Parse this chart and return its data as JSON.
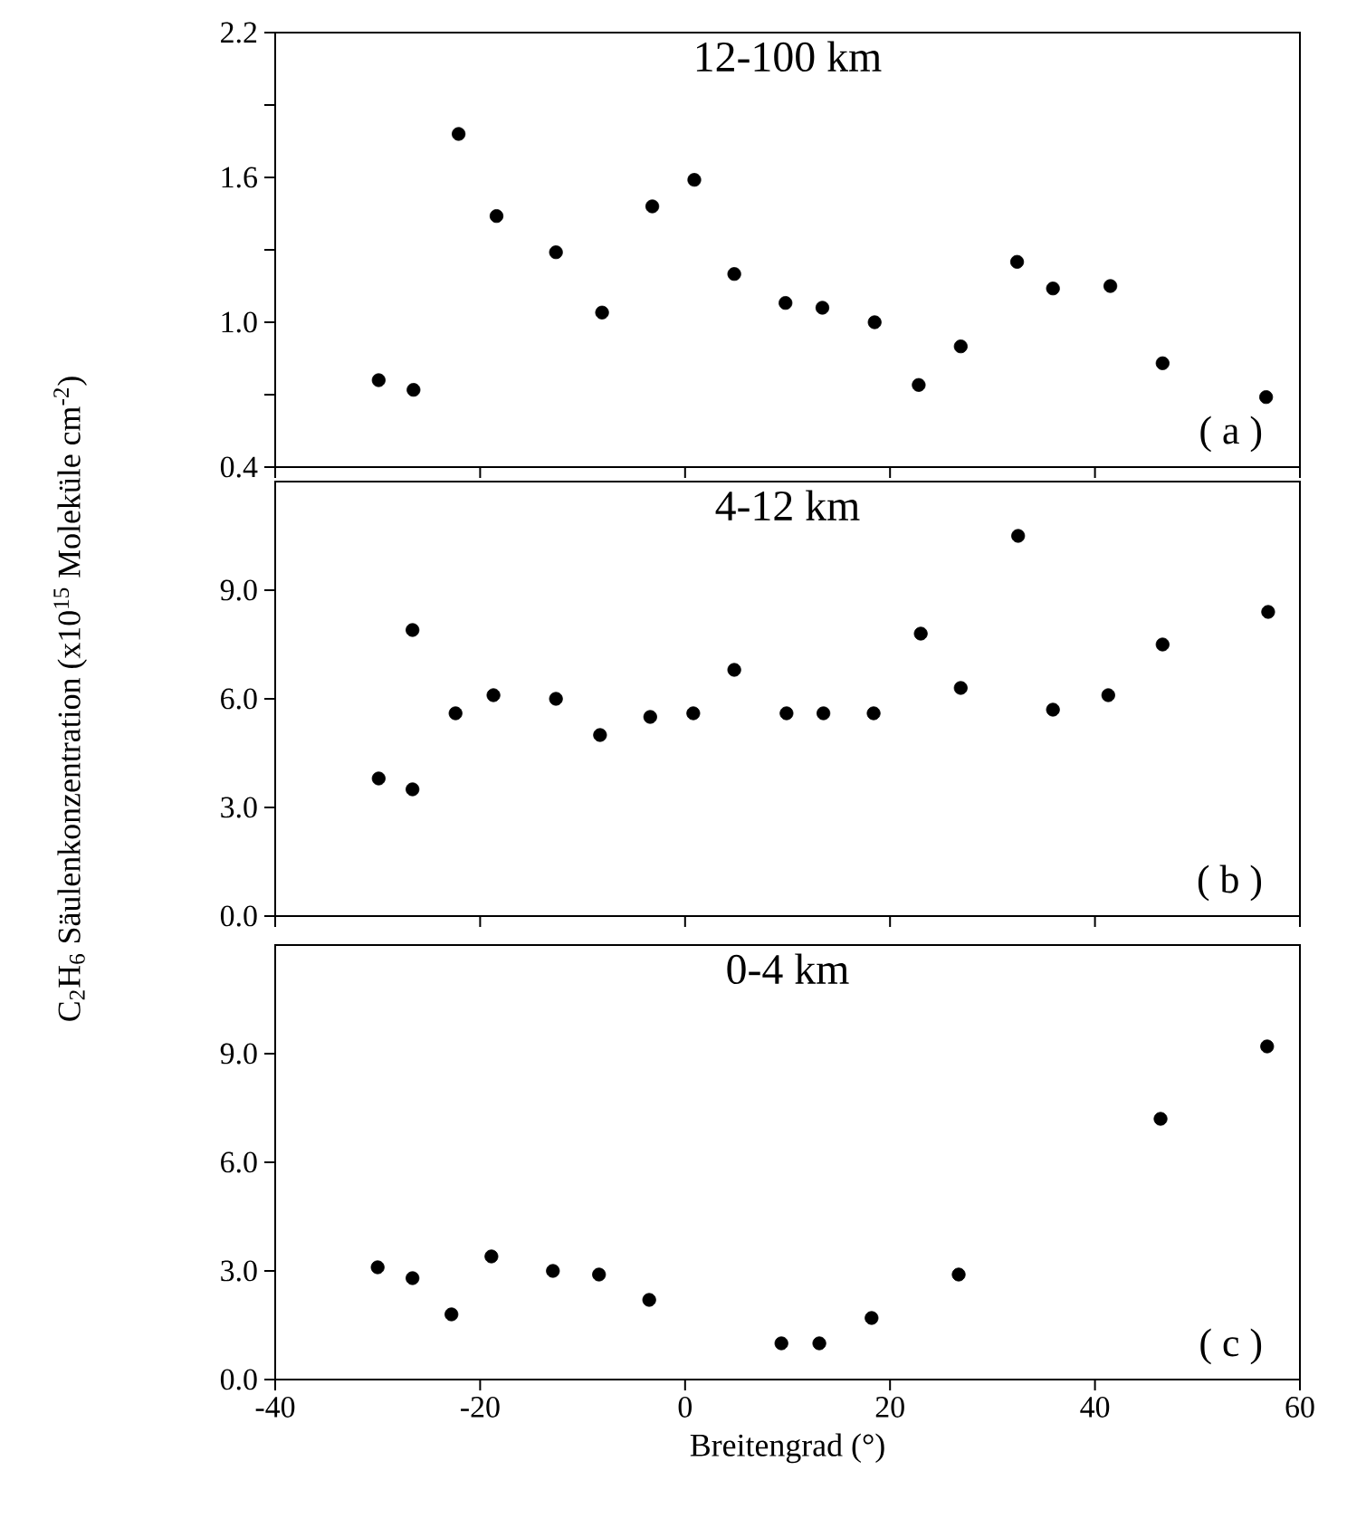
{
  "chart_data": [
    {
      "type": "scatter",
      "title": "12-100  km",
      "annotations": [
        "( a )"
      ],
      "marker": "circle",
      "grid": false,
      "tick_labels": "y",
      "xlim": [
        -40,
        60
      ],
      "xticks": [
        -40,
        -20,
        0,
        20,
        40,
        60
      ],
      "ylim": [
        0.4,
        2.2
      ],
      "yticks": [
        0.4,
        {
          "value": 0.7,
          "label": null
        },
        {
          "value": 1.0,
          "label": "1.0"
        },
        {
          "value": 1.3,
          "label": null
        },
        1.6,
        {
          "value": 1.9,
          "label": null
        },
        2.2
      ],
      "series": [
        {
          "color": "#000000",
          "x": [
            -29.9,
            -26.5,
            -22.1,
            -18.4,
            -12.6,
            -8.1,
            -3.2,
            0.9,
            4.8,
            9.8,
            13.4,
            18.5,
            22.8,
            26.9,
            32.4,
            35.9,
            41.5,
            46.6,
            56.7
          ],
          "values": [
            0.76,
            0.72,
            1.78,
            1.44,
            1.29,
            1.04,
            1.48,
            1.59,
            1.2,
            1.08,
            1.06,
            1.0,
            0.74,
            0.9,
            1.25,
            1.14,
            1.15,
            0.83,
            0.69
          ]
        }
      ]
    },
    {
      "type": "scatter",
      "title": "4-12  km",
      "annotations": [
        "( b )"
      ],
      "marker": "circle",
      "grid": false,
      "tick_labels": "y",
      "ylabel": "C$_{2}$H$_{6}$ Säulenkonzentration  (x10$^{15}$ Moleküle cm$^{-2}$)",
      "xlim": [
        -40,
        60
      ],
      "xticks": [
        -40,
        -20,
        0,
        20,
        40,
        60
      ],
      "ylim": [
        0,
        12
      ],
      "yticks": [
        {
          "value": 0,
          "label": "0.0"
        },
        {
          "value": 3,
          "label": "3.0"
        },
        {
          "value": 6,
          "label": "6.0"
        },
        {
          "value": 9,
          "label": "9.0"
        }
      ],
      "series": [
        {
          "color": "#000000",
          "x": [
            -29.9,
            -26.6,
            -26.6,
            -22.4,
            -18.7,
            -12.6,
            -8.3,
            -3.4,
            0.8,
            4.8,
            9.9,
            13.5,
            18.4,
            23.0,
            26.9,
            32.5,
            35.9,
            41.3,
            46.6,
            56.9
          ],
          "values": [
            3.8,
            7.9,
            3.5,
            5.6,
            6.1,
            6.0,
            5.0,
            5.5,
            5.6,
            6.8,
            5.6,
            5.6,
            5.6,
            7.8,
            6.3,
            10.5,
            5.7,
            6.1,
            7.5,
            8.4
          ]
        }
      ]
    },
    {
      "type": "scatter",
      "title": "0-4  km",
      "annotations": [
        "( c )"
      ],
      "marker": "circle",
      "grid": false,
      "xlabel": "Breitengrad  (°)",
      "xlim": [
        -40,
        60
      ],
      "xticks": [
        -40,
        -20,
        0,
        20,
        40,
        60
      ],
      "ylim": [
        0,
        12
      ],
      "yticks": [
        {
          "value": 0,
          "label": "0.0"
        },
        {
          "value": 3,
          "label": "3.0"
        },
        {
          "value": 6,
          "label": "6.0"
        },
        {
          "value": 9,
          "label": "9.0"
        }
      ],
      "series": [
        {
          "color": "#000000",
          "x": [
            -30.0,
            -26.6,
            -22.8,
            -18.9,
            -12.9,
            -8.4,
            -3.5,
            9.4,
            13.1,
            18.2,
            26.7,
            46.4,
            56.8
          ],
          "values": [
            3.1,
            2.8,
            1.8,
            3.4,
            3.0,
            2.9,
            2.2,
            1.0,
            1.0,
            1.7,
            2.9,
            7.2,
            9.2
          ]
        }
      ]
    }
  ]
}
